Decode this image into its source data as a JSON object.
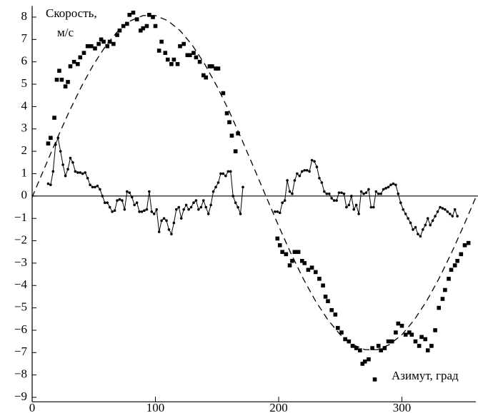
{
  "chart_data": {
    "type": "scatter",
    "ylabel": [
      "Скорость,",
      "м/с"
    ],
    "xlabel": "Азимут, град",
    "xlim": [
      0,
      360
    ],
    "ylim": [
      -9.2,
      8.5
    ],
    "xticks": [
      0,
      100,
      200,
      300
    ],
    "yticks": [
      {
        "value": -9,
        "label": "−9"
      },
      {
        "value": -8,
        "label": "−8"
      },
      {
        "value": -7,
        "label": "−7"
      },
      {
        "value": -6,
        "label": "−6"
      },
      {
        "value": -5,
        "label": "−5"
      },
      {
        "value": -4,
        "label": "−4"
      },
      {
        "value": -3,
        "label": "−3"
      },
      {
        "value": -2,
        "label": "−2"
      },
      {
        "value": -1,
        "label": "−1"
      },
      0,
      1,
      2,
      3,
      4,
      5,
      6,
      7,
      8
    ],
    "zero_line": true,
    "series": [
      {
        "type": "scatter",
        "marker": "square",
        "color": "#000000",
        "x": [
          13,
          15,
          18,
          20,
          22,
          24,
          27,
          29,
          31,
          34,
          37,
          39,
          42,
          45,
          48,
          51,
          54,
          56,
          58,
          61,
          63,
          66,
          69,
          71,
          74,
          77,
          79,
          82,
          85,
          88,
          90,
          93,
          95,
          98,
          100,
          103,
          105,
          108,
          110,
          113,
          115,
          118,
          120,
          123,
          126,
          128,
          131,
          133,
          136,
          139,
          141,
          144,
          146,
          149,
          151,
          155,
          158,
          160,
          162,
          165,
          167,
          199,
          201,
          203,
          206,
          209,
          211,
          213,
          216,
          219,
          221,
          224,
          227,
          230,
          233,
          236,
          238,
          240,
          243,
          246,
          248,
          251,
          254,
          257,
          260,
          263,
          266,
          268,
          270,
          273,
          276,
          278,
          281,
          283,
          286,
          289,
          292,
          295,
          297,
          300,
          303,
          306,
          308,
          311,
          314,
          316,
          319,
          321,
          324,
          327,
          330,
          333,
          335,
          338,
          340,
          343,
          345,
          348,
          351,
          354
        ],
        "values": [
          2.35,
          2.6,
          3.5,
          5.2,
          5.6,
          5.2,
          4.9,
          5.1,
          5.8,
          6.0,
          5.9,
          6.2,
          6.4,
          6.7,
          6.7,
          6.6,
          6.8,
          7.0,
          6.9,
          6.7,
          6.9,
          6.8,
          7.2,
          7.4,
          7.6,
          7.7,
          8.1,
          8.2,
          7.9,
          7.4,
          7.5,
          7.6,
          8.1,
          8.0,
          7.6,
          6.5,
          6.9,
          6.4,
          6.1,
          5.9,
          6.1,
          5.9,
          6.7,
          6.8,
          6.3,
          6.3,
          6.4,
          6.2,
          6.0,
          5.4,
          5.3,
          5.8,
          5.8,
          5.7,
          5.7,
          4.6,
          3.7,
          3.3,
          2.7,
          2.0,
          2.8,
          -1.9,
          -2.2,
          -2.5,
          -2.6,
          -3.1,
          -2.9,
          -2.5,
          -2.5,
          -2.9,
          -3.0,
          -3.3,
          -3.2,
          -3.4,
          -3.7,
          -4.0,
          -4.5,
          -4.7,
          -5.1,
          -5.3,
          -5.9,
          -6.1,
          -6.4,
          -6.5,
          -6.7,
          -6.8,
          -6.9,
          -7.5,
          -7.4,
          -7.3,
          -6.8,
          -8.2,
          -6.7,
          -6.9,
          -6.8,
          -6.5,
          -6.5,
          -6.1,
          -5.7,
          -5.8,
          -6.2,
          -6.1,
          -6.2,
          -6.5,
          -6.7,
          -6.3,
          -6.4,
          -6.9,
          -6.7,
          -6.0,
          -5.0,
          -4.6,
          -4.2,
          -3.7,
          -3.3,
          -3.1,
          -2.9,
          -2.6,
          -2.2,
          -2.1
        ]
      },
      {
        "type": "line",
        "marker": "dot",
        "color": "#000000",
        "x": [
          13,
          15,
          17,
          19,
          21,
          23,
          25,
          27,
          29,
          31,
          33,
          35,
          37,
          39,
          41,
          43,
          45,
          47,
          49,
          51,
          53,
          55,
          57,
          59,
          61,
          63,
          65,
          67,
          69,
          71,
          73,
          75,
          77,
          79,
          81,
          83,
          85,
          87,
          89,
          91,
          93,
          95,
          97,
          99,
          101,
          103,
          105,
          107,
          109,
          111,
          113,
          115,
          117,
          119,
          121,
          123,
          125,
          127,
          129,
          131,
          133,
          135,
          137,
          139,
          141,
          143,
          145,
          147,
          149,
          151,
          153,
          155,
          157,
          159,
          161,
          163,
          165,
          167,
          169,
          171,
          null,
          197,
          199,
          201,
          203,
          205,
          207,
          209,
          211,
          213,
          215,
          217,
          219,
          221,
          223,
          225,
          227,
          229,
          231,
          233,
          235,
          237,
          239,
          241,
          243,
          245,
          247,
          249,
          251,
          253,
          255,
          257,
          259,
          261,
          263,
          265,
          267,
          269,
          271,
          273,
          275,
          277,
          279,
          281,
          283,
          285,
          287,
          289,
          291,
          293,
          295,
          297,
          299,
          301,
          303,
          305,
          307,
          309,
          311,
          313,
          315,
          317,
          319,
          321,
          323,
          325,
          327,
          329,
          331,
          333,
          335,
          337,
          339,
          341,
          343,
          345
        ],
        "values": [
          0.55,
          0.5,
          1.1,
          2.3,
          2.6,
          2.0,
          1.4,
          0.9,
          1.2,
          1.7,
          1.5,
          1.1,
          1.05,
          1.05,
          1.0,
          1.05,
          0.8,
          0.5,
          0.4,
          0.4,
          0.45,
          0.3,
          0.0,
          -0.3,
          -0.3,
          -0.5,
          -0.7,
          -0.65,
          -0.2,
          -0.15,
          -0.2,
          -0.6,
          0.2,
          0.15,
          -0.05,
          -0.4,
          -0.3,
          -0.7,
          -0.7,
          -0.65,
          -0.6,
          0.2,
          -0.7,
          -0.8,
          -0.6,
          -1.6,
          -1.1,
          -1.0,
          -1.1,
          -1.5,
          -1.7,
          -1.2,
          -0.6,
          -0.5,
          -1.0,
          -0.6,
          -0.4,
          -0.6,
          -0.5,
          -0.3,
          -0.2,
          -0.6,
          -0.5,
          -0.2,
          -0.5,
          -0.8,
          -0.4,
          0.2,
          0.4,
          0.6,
          1.0,
          1.0,
          0.9,
          1.1,
          1.1,
          0.0,
          -0.3,
          -0.5,
          -0.8,
          0.4,
          null,
          -0.7,
          -0.7,
          -0.75,
          -0.3,
          -0.2,
          0.7,
          0.2,
          0.1,
          0.7,
          1.0,
          0.9,
          1.1,
          1.15,
          1.15,
          1.1,
          1.6,
          1.55,
          1.3,
          0.8,
          0.6,
          0.2,
          0.1,
          0.1,
          -0.1,
          -0.2,
          -0.2,
          0.15,
          0.15,
          0.1,
          -0.5,
          -0.4,
          0.0,
          -0.6,
          -0.4,
          -0.8,
          0.2,
          0.1,
          0.15,
          0.3,
          -0.5,
          -0.5,
          0.2,
          0.1,
          0.1,
          0.3,
          0.35,
          0.4,
          0.5,
          0.55,
          0.5,
          0.1,
          -0.3,
          -0.6,
          -0.8,
          -1.0,
          -1.2,
          -1.5,
          -1.4,
          -1.7,
          -1.8,
          -1.5,
          -1.3,
          -1.0,
          -1.3,
          -1.1,
          -0.9,
          -0.7,
          -0.5,
          -0.55,
          -0.6,
          -0.7,
          -0.8,
          -0.9,
          -0.6,
          -0.9
        ]
      },
      {
        "type": "line",
        "marker": "none",
        "line_style": "dashed",
        "color": "#000000",
        "x": [
          0,
          10,
          20,
          30,
          40,
          50,
          60,
          70,
          80,
          90,
          100,
          110,
          120,
          130,
          140,
          150,
          160,
          170,
          180,
          190,
          200,
          210,
          220,
          230,
          240,
          250,
          260,
          270,
          280,
          290,
          300,
          310,
          320,
          330,
          340,
          350,
          360
        ],
        "values": [
          -0.05,
          1.25,
          2.54,
          3.77,
          4.9,
          5.9,
          6.74,
          7.4,
          7.84,
          8.07,
          8.07,
          7.84,
          7.4,
          6.74,
          5.9,
          4.9,
          3.77,
          2.54,
          1.25,
          -0.05,
          -1.34,
          -2.57,
          -3.7,
          -4.7,
          -5.54,
          -6.2,
          -6.64,
          -6.87,
          -6.87,
          -6.64,
          -6.2,
          -5.54,
          -4.7,
          -3.7,
          -2.57,
          -1.34,
          -0.05
        ]
      }
    ]
  }
}
